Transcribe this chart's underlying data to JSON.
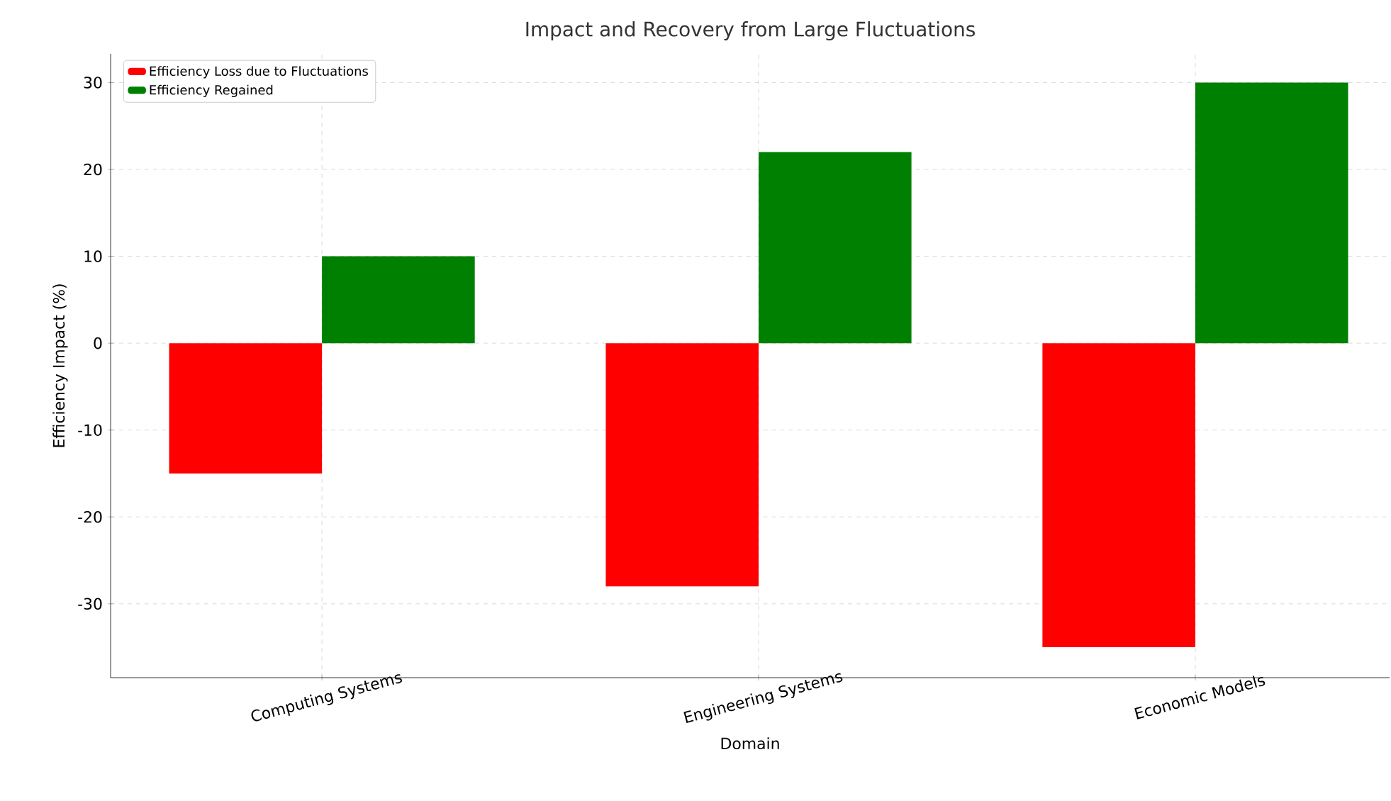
{
  "chart_data": {
    "type": "bar",
    "title": "Impact and Recovery from Large Fluctuations",
    "xlabel": "Domain",
    "ylabel": "Efficiency Impact (%)",
    "categories": [
      "Computing Systems",
      "Engineering Systems",
      "Economic Models"
    ],
    "series": [
      {
        "name": "Efficiency Loss due to Fluctuations",
        "color": "#ff0000",
        "values": [
          -15,
          -28,
          -35
        ]
      },
      {
        "name": "Efficiency Regained",
        "color": "#008000",
        "values": [
          10,
          22,
          30
        ]
      }
    ],
    "ylim": [
      -38.5,
      33.3
    ],
    "yticks": [
      -30,
      -20,
      -10,
      0,
      10,
      20,
      30
    ],
    "grid": true,
    "legend": "top left"
  }
}
